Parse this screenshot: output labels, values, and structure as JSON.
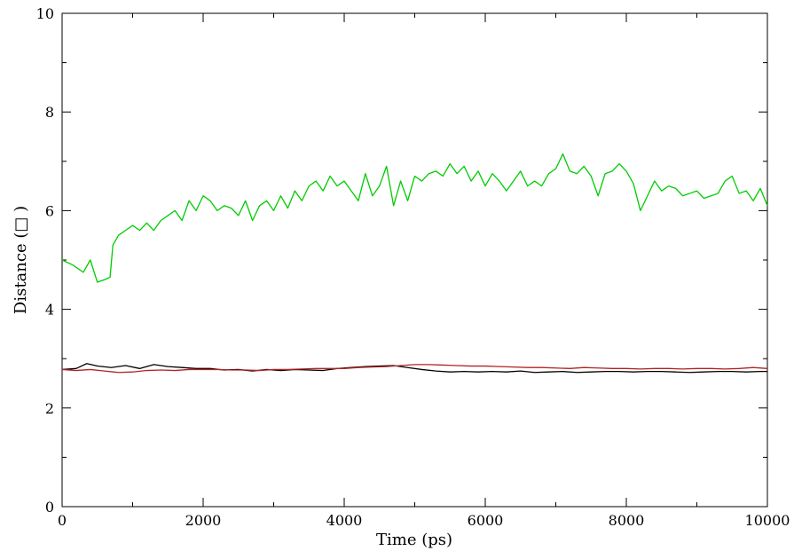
{
  "chart_data": {
    "type": "line",
    "title": "",
    "xlabel": "Time (ps)",
    "ylabel": "Distance (□ )",
    "xlim": [
      0,
      10000
    ],
    "ylim": [
      0,
      10
    ],
    "xticks": [
      0,
      2000,
      4000,
      6000,
      8000,
      10000
    ],
    "yticks": [
      0,
      2,
      4,
      6,
      8,
      10
    ],
    "grid": false,
    "legend": "none",
    "series": [
      {
        "color": "#00cc00",
        "x": [
          0,
          150,
          300,
          400,
          500,
          600,
          680,
          720,
          800,
          900,
          1000,
          1100,
          1200,
          1300,
          1400,
          1500,
          1600,
          1700,
          1800,
          1900,
          2000,
          2100,
          2200,
          2300,
          2400,
          2500,
          2600,
          2700,
          2800,
          2900,
          3000,
          3100,
          3200,
          3300,
          3400,
          3500,
          3600,
          3700,
          3800,
          3900,
          4000,
          4100,
          4200,
          4300,
          4400,
          4500,
          4600,
          4700,
          4800,
          4900,
          5000,
          5100,
          5200,
          5300,
          5400,
          5500,
          5600,
          5700,
          5800,
          5900,
          6000,
          6100,
          6200,
          6300,
          6400,
          6500,
          6600,
          6700,
          6800,
          6900,
          7000,
          7100,
          7200,
          7300,
          7400,
          7500,
          7600,
          7700,
          7800,
          7900,
          8000,
          8100,
          8200,
          8300,
          8400,
          8500,
          8600,
          8700,
          8800,
          8900,
          9000,
          9100,
          9200,
          9300,
          9400,
          9500,
          9600,
          9700,
          9800,
          9900,
          10000
        ],
        "y": [
          5.0,
          4.9,
          4.75,
          5.0,
          4.55,
          4.6,
          4.65,
          5.3,
          5.5,
          5.6,
          5.7,
          5.6,
          5.75,
          5.6,
          5.8,
          5.9,
          6.0,
          5.8,
          6.2,
          6.0,
          6.3,
          6.2,
          6.0,
          6.1,
          6.05,
          5.9,
          6.2,
          5.8,
          6.1,
          6.2,
          6.0,
          6.3,
          6.05,
          6.4,
          6.2,
          6.5,
          6.6,
          6.4,
          6.7,
          6.5,
          6.6,
          6.4,
          6.2,
          6.75,
          6.3,
          6.5,
          6.9,
          6.1,
          6.6,
          6.2,
          6.7,
          6.6,
          6.75,
          6.8,
          6.7,
          6.95,
          6.75,
          6.9,
          6.6,
          6.8,
          6.5,
          6.75,
          6.6,
          6.4,
          6.6,
          6.8,
          6.5,
          6.6,
          6.5,
          6.75,
          6.85,
          7.15,
          6.8,
          6.75,
          6.9,
          6.7,
          6.3,
          6.75,
          6.8,
          6.95,
          6.8,
          6.55,
          6.0,
          6.3,
          6.6,
          6.4,
          6.5,
          6.45,
          6.3,
          6.35,
          6.4,
          6.25,
          6.3,
          6.35,
          6.6,
          6.7,
          6.35,
          6.4,
          6.2,
          6.45,
          6.1
        ]
      },
      {
        "color": "#000000",
        "x": [
          0,
          200,
          350,
          500,
          700,
          900,
          1100,
          1300,
          1500,
          1700,
          1900,
          2100,
          2300,
          2500,
          2700,
          2900,
          3100,
          3300,
          3500,
          3700,
          3900,
          4100,
          4300,
          4500,
          4700,
          4900,
          5100,
          5300,
          5500,
          5700,
          5900,
          6100,
          6300,
          6500,
          6700,
          6900,
          7100,
          7300,
          7500,
          7700,
          7900,
          8100,
          8300,
          8500,
          8700,
          8900,
          9100,
          9300,
          9500,
          9700,
          9900,
          10000
        ],
        "y": [
          2.78,
          2.8,
          2.9,
          2.85,
          2.82,
          2.86,
          2.8,
          2.88,
          2.84,
          2.82,
          2.8,
          2.8,
          2.77,
          2.78,
          2.75,
          2.78,
          2.76,
          2.78,
          2.77,
          2.76,
          2.8,
          2.82,
          2.84,
          2.85,
          2.86,
          2.82,
          2.78,
          2.75,
          2.73,
          2.74,
          2.73,
          2.74,
          2.73,
          2.75,
          2.72,
          2.73,
          2.74,
          2.72,
          2.73,
          2.74,
          2.74,
          2.73,
          2.74,
          2.74,
          2.73,
          2.72,
          2.73,
          2.74,
          2.74,
          2.73,
          2.74,
          2.74
        ]
      },
      {
        "color": "#b22222",
        "x": [
          0,
          200,
          400,
          600,
          800,
          1000,
          1200,
          1400,
          1600,
          1800,
          2000,
          2200,
          2400,
          2600,
          2800,
          3000,
          3200,
          3400,
          3600,
          3800,
          4000,
          4200,
          4400,
          4600,
          4800,
          5000,
          5200,
          5400,
          5600,
          5800,
          6000,
          6200,
          6400,
          6600,
          6800,
          7000,
          7200,
          7400,
          7600,
          7800,
          8000,
          8200,
          8400,
          8600,
          8800,
          9000,
          9200,
          9400,
          9600,
          9800,
          10000
        ],
        "y": [
          2.78,
          2.76,
          2.78,
          2.75,
          2.72,
          2.73,
          2.76,
          2.77,
          2.76,
          2.78,
          2.78,
          2.78,
          2.77,
          2.77,
          2.76,
          2.78,
          2.78,
          2.79,
          2.8,
          2.8,
          2.8,
          2.82,
          2.83,
          2.84,
          2.86,
          2.88,
          2.88,
          2.87,
          2.86,
          2.85,
          2.85,
          2.84,
          2.83,
          2.82,
          2.82,
          2.81,
          2.8,
          2.82,
          2.81,
          2.8,
          2.8,
          2.79,
          2.8,
          2.8,
          2.79,
          2.8,
          2.8,
          2.79,
          2.8,
          2.82,
          2.8
        ]
      }
    ]
  }
}
